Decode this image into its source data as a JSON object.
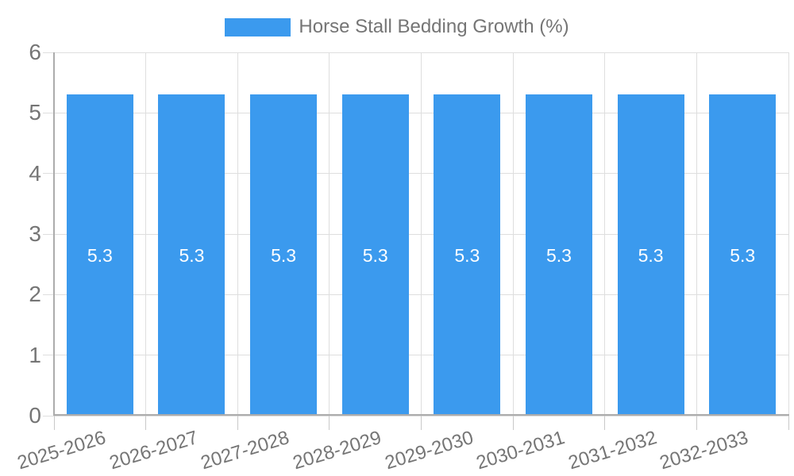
{
  "chart_data": {
    "type": "bar",
    "title": "Horse Stall Bedding Growth (%)",
    "legend": [
      "Horse Stall Bedding Growth (%)"
    ],
    "legend_position": "top-center",
    "categories": [
      "2025-2026",
      "2026-2027",
      "2027-2028",
      "2028-2029",
      "2029-2030",
      "2030-2031",
      "2031-2032",
      "2032-2033"
    ],
    "values": [
      5.3,
      5.3,
      5.3,
      5.3,
      5.3,
      5.3,
      5.3,
      5.3
    ],
    "bar_value_labels": [
      "5.3",
      "5.3",
      "5.3",
      "5.3",
      "5.3",
      "5.3",
      "5.3",
      "5.3"
    ],
    "y_tick_labels": [
      "0",
      "1",
      "2",
      "3",
      "4",
      "5",
      "6"
    ],
    "xlabel": "",
    "ylabel": "",
    "ylim": [
      0,
      6
    ],
    "ytick_step": 1,
    "grid": true,
    "x_label_rotation_deg": -17
  },
  "colors": {
    "bar": "#3B9AEE",
    "bar_label": "#FFFFFF",
    "grid": "#DEDEDE",
    "axis": "#ACACAC",
    "tick": "#C9C9C9",
    "label_text": "#757575",
    "background": "#FFFFFF"
  }
}
